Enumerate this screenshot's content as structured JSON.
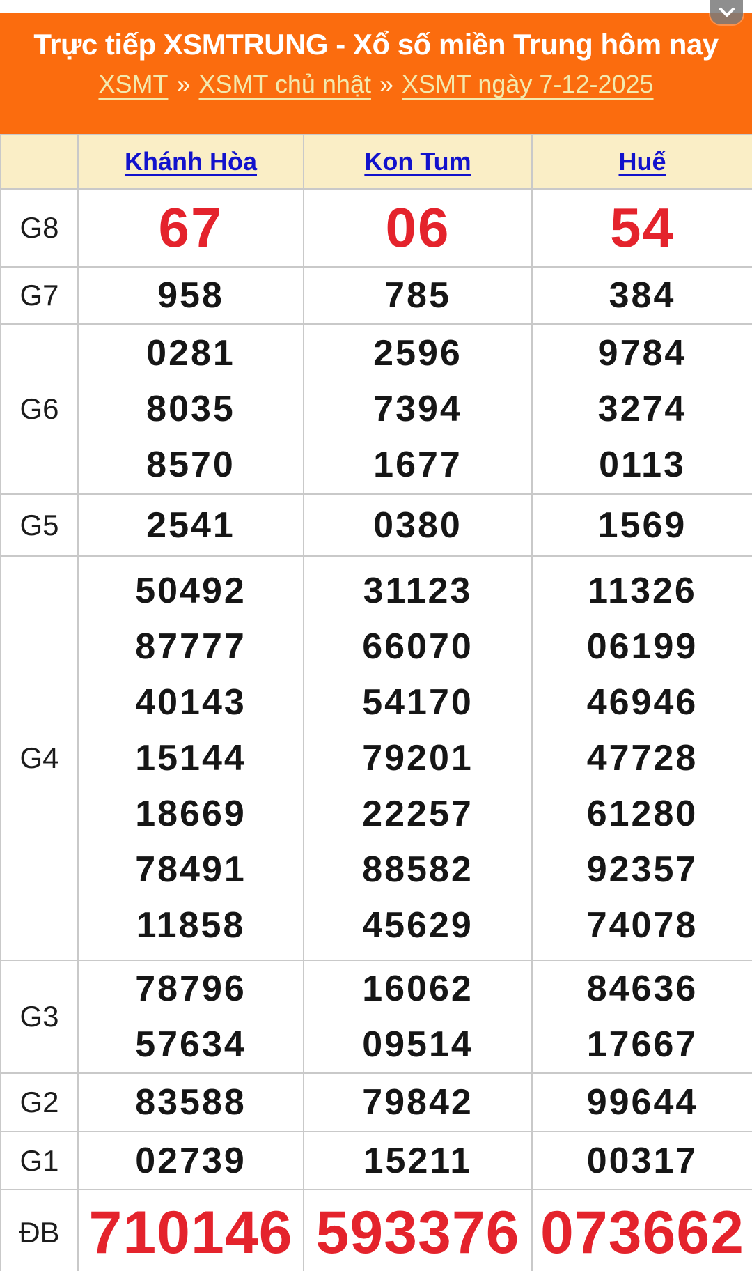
{
  "header": {
    "title": "Trực tiếp XSMTRUNG - Xổ số miền Trung hôm nay",
    "breadcrumb": {
      "links": [
        "XSMT",
        "XSMT chủ nhật",
        "XSMT ngày 7-12-2025"
      ],
      "separator": "»"
    },
    "collapse_icon": "chevron-down-icon"
  },
  "colors": {
    "header_bg": "#fb6c0e",
    "header_title": "#ffffff",
    "breadcrumb_link": "#f3e9ad",
    "table_header_bg": "#faeec6",
    "province_link_blue": "#1212cc",
    "highlight_red": "#e4232c",
    "number_black": "#161616",
    "grid_border": "#c9c9c9",
    "collapse_btn_gray": "#7a7a7a"
  },
  "table": {
    "columns": [
      "",
      "Khánh Hòa",
      "Kon Tum",
      "Huế"
    ],
    "rows": [
      {
        "label": "G8",
        "highlight": true,
        "cells": [
          [
            "67"
          ],
          [
            "06"
          ],
          [
            "54"
          ]
        ]
      },
      {
        "label": "G7",
        "highlight": false,
        "cells": [
          [
            "958"
          ],
          [
            "785"
          ],
          [
            "384"
          ]
        ]
      },
      {
        "label": "G6",
        "highlight": false,
        "cells": [
          [
            "0281",
            "8035",
            "8570"
          ],
          [
            "2596",
            "7394",
            "1677"
          ],
          [
            "9784",
            "3274",
            "0113"
          ]
        ]
      },
      {
        "label": "G5",
        "highlight": false,
        "cells": [
          [
            "2541"
          ],
          [
            "0380"
          ],
          [
            "1569"
          ]
        ]
      },
      {
        "label": "G4",
        "highlight": false,
        "cells": [
          [
            "50492",
            "87777",
            "40143",
            "15144",
            "18669",
            "78491",
            "11858"
          ],
          [
            "31123",
            "66070",
            "54170",
            "79201",
            "22257",
            "88582",
            "45629"
          ],
          [
            "11326",
            "06199",
            "46946",
            "47728",
            "61280",
            "92357",
            "74078"
          ]
        ]
      },
      {
        "label": "G3",
        "highlight": false,
        "cells": [
          [
            "78796",
            "57634"
          ],
          [
            "16062",
            "09514"
          ],
          [
            "84636",
            "17667"
          ]
        ]
      },
      {
        "label": "G2",
        "highlight": false,
        "cells": [
          [
            "83588"
          ],
          [
            "79842"
          ],
          [
            "99644"
          ]
        ]
      },
      {
        "label": "G1",
        "highlight": false,
        "cells": [
          [
            "02739"
          ],
          [
            "15211"
          ],
          [
            "00317"
          ]
        ]
      },
      {
        "label": "ĐB",
        "highlight": true,
        "cells": [
          [
            "710146"
          ],
          [
            "593376"
          ],
          [
            "073662"
          ]
        ]
      }
    ]
  }
}
